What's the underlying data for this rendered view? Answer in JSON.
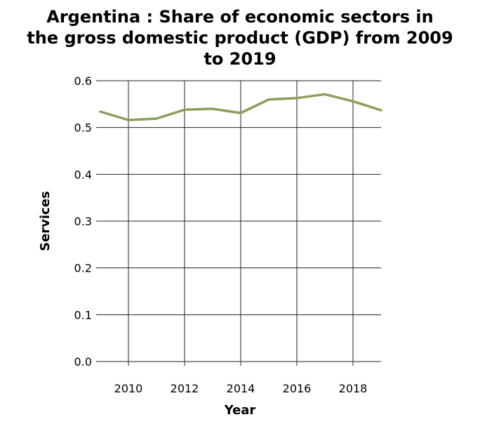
{
  "chart_data": {
    "type": "line",
    "title_lines": [
      "Argentina : Share of economic sectors in",
      "the gross domestic product (GDP) from 2009",
      "to 2019"
    ],
    "xlabel": "Year",
    "ylabel": "Services",
    "xlim": [
      2009,
      2019
    ],
    "ylim": [
      0,
      0.6
    ],
    "x_ticks": [
      "2010",
      "2012",
      "2014",
      "2016",
      "2018"
    ],
    "y_ticks": [
      "0.0",
      "0.1",
      "0.2",
      "0.3",
      "0.4",
      "0.5",
      "0.6"
    ],
    "grid": true,
    "line_color": "#8aa057",
    "series": [
      {
        "x": [
          2009,
          2010,
          2011,
          2012,
          2013,
          2014,
          2015,
          2016,
          2017,
          2018,
          2019
        ],
        "values": [
          0.534,
          0.516,
          0.519,
          0.538,
          0.54,
          0.531,
          0.56,
          0.563,
          0.571,
          0.556,
          0.537
        ]
      }
    ]
  }
}
